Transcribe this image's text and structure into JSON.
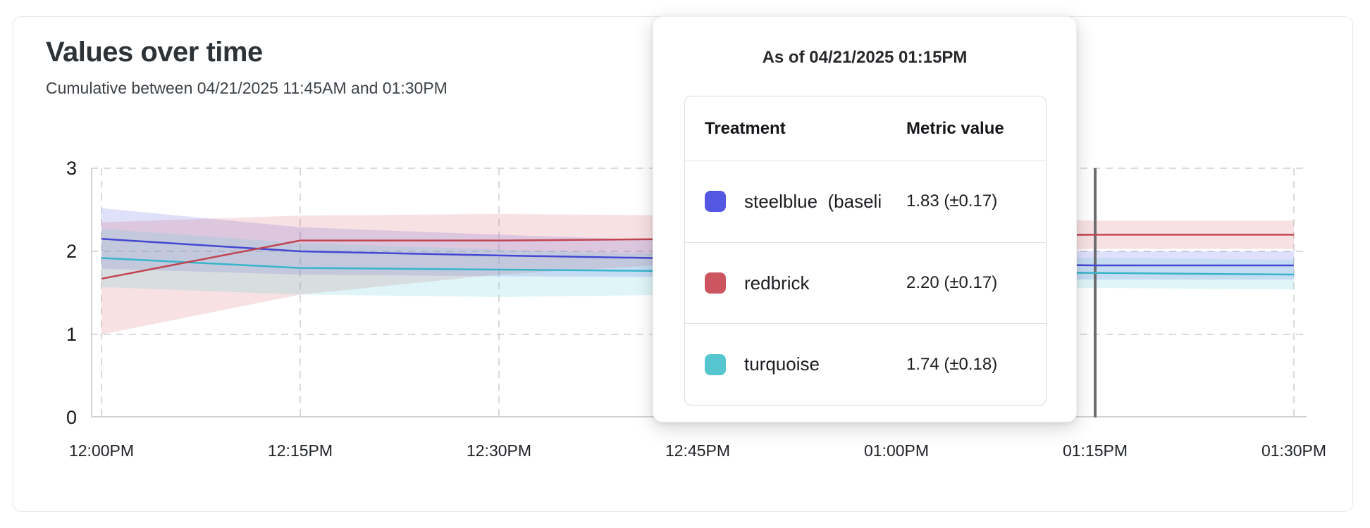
{
  "card": {
    "title": "Values over time",
    "subtitle": "Cumulative between 04/21/2025 11:45AM and 01:30PM"
  },
  "colors": {
    "steelblue_line": "#4347d2",
    "steelblue_fill": "rgba(96,99,228,0.20)",
    "redbrick_line": "#c24450",
    "redbrick_fill": "rgba(208,88,98,0.18)",
    "turquoise_line": "#38b5ca",
    "turquoise_fill": "rgba(94,203,214,0.20)",
    "hover_line": "#6d6d6f",
    "grid": "#dadadc",
    "axis": "#d2d2d4"
  },
  "chart_data": {
    "type": "line",
    "title": "Values over time",
    "subtitle": "Cumulative between 04/21/2025 11:45AM and 01:30PM",
    "x": [
      "12:00PM",
      "12:15PM",
      "12:30PM",
      "12:45PM",
      "01:00PM",
      "01:15PM",
      "01:30PM"
    ],
    "ylim": [
      0,
      3
    ],
    "y_ticks": [
      0,
      1,
      2,
      3
    ],
    "grid": true,
    "legend_position": "tooltip",
    "hover_x": "01:15PM",
    "line_order": [
      "turquoise",
      "steelblue",
      "redbrick"
    ],
    "series": [
      {
        "name": "steelblue (baseline)",
        "color_key": "steelblue",
        "values": [
          2.15,
          2.0,
          1.95,
          1.91,
          1.86,
          1.83,
          1.83
        ],
        "lower": [
          1.79,
          1.72,
          1.7,
          1.69,
          1.67,
          1.66,
          1.66
        ],
        "upper": [
          2.52,
          2.29,
          2.2,
          2.12,
          2.05,
          2.0,
          2.0
        ]
      },
      {
        "name": "redbrick",
        "color_key": "redbrick",
        "values": [
          1.67,
          2.13,
          2.13,
          2.15,
          2.18,
          2.2,
          2.2
        ],
        "lower": [
          1.0,
          1.48,
          1.72,
          1.86,
          1.97,
          2.03,
          2.03
        ],
        "upper": [
          2.35,
          2.43,
          2.45,
          2.43,
          2.4,
          2.37,
          2.37
        ]
      },
      {
        "name": "turquoise",
        "color_key": "turquoise",
        "values": [
          1.92,
          1.8,
          1.78,
          1.76,
          1.75,
          1.74,
          1.72
        ],
        "lower": [
          1.57,
          1.48,
          1.45,
          1.48,
          1.52,
          1.56,
          1.54
        ],
        "upper": [
          2.27,
          2.1,
          2.02,
          1.96,
          1.93,
          1.92,
          1.9
        ]
      }
    ]
  },
  "tooltip": {
    "title": "As of 04/21/2025 01:15PM",
    "col_treatment": "Treatment",
    "col_metric": "Metric value",
    "rows": [
      {
        "label": "steelblue  (baseli",
        "value": "1.83 (±0.17)",
        "swatch": "#5457e2"
      },
      {
        "label": "redbrick",
        "value": "2.20 (±0.17)",
        "swatch": "#cd5560"
      },
      {
        "label": "turquoise",
        "value": "1.74 (±0.18)",
        "swatch": "#55c5d0"
      }
    ]
  }
}
